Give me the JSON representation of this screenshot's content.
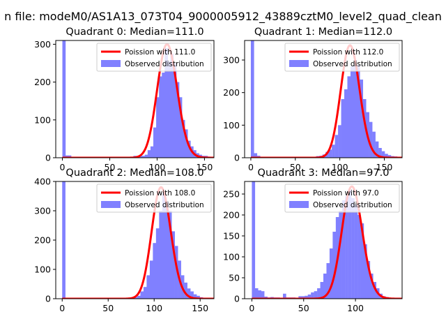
{
  "suptitle": "n file: modeM0/AS1A13_073T04_9000005912_43889cztM0_level2_quad_clean",
  "colors": {
    "observed": "#8080ff",
    "poisson": "#ff0000"
  },
  "chart_data": [
    {
      "type": "bar",
      "title": "Quadrant 0: Median=111.0",
      "xlim": [
        -7,
        160
      ],
      "ylim": [
        0,
        310
      ],
      "xticks": [
        0,
        50,
        100,
        150
      ],
      "yticks": [
        0,
        100,
        200,
        300
      ],
      "legend_position": "top-right",
      "observed_distribution": {
        "name": "Observed distribution",
        "bin_width": 3.3,
        "bins": [
          [
            0,
            310
          ],
          [
            3,
            6
          ],
          [
            6,
            6
          ],
          [
            72,
            2
          ],
          [
            75,
            5
          ],
          [
            78,
            3
          ],
          [
            81,
            5
          ],
          [
            84,
            5
          ],
          [
            87,
            8
          ],
          [
            90,
            20
          ],
          [
            93,
            30
          ],
          [
            96,
            80
          ],
          [
            99,
            160
          ],
          [
            102,
            215
          ],
          [
            105,
            225
          ],
          [
            108,
            290
          ],
          [
            111,
            255
          ],
          [
            114,
            275
          ],
          [
            117,
            250
          ],
          [
            120,
            200
          ],
          [
            123,
            160
          ],
          [
            126,
            100
          ],
          [
            129,
            75
          ],
          [
            132,
            45
          ],
          [
            135,
            30
          ],
          [
            138,
            20
          ],
          [
            141,
            12
          ],
          [
            144,
            8
          ],
          [
            147,
            5
          ],
          [
            150,
            5
          ],
          [
            153,
            3
          ]
        ]
      },
      "poisson": {
        "name": "Poission with 111.0",
        "lambda": 111.0,
        "scale": 300
      }
    },
    {
      "type": "bar",
      "title": "Quadrant 1: Median=112.0",
      "xlim": [
        -7,
        170
      ],
      "ylim": [
        0,
        360
      ],
      "xticks": [
        0,
        50,
        100,
        150
      ],
      "yticks": [
        0,
        100,
        200,
        300
      ],
      "legend_position": "top-right",
      "observed_distribution": {
        "name": "Observed distribution",
        "bin_width": 3.5,
        "bins": [
          [
            0,
            360
          ],
          [
            3.5,
            14
          ],
          [
            7,
            6
          ],
          [
            70,
            3
          ],
          [
            73.5,
            5
          ],
          [
            77,
            6
          ],
          [
            80.5,
            10
          ],
          [
            84,
            18
          ],
          [
            87.5,
            25
          ],
          [
            91,
            40
          ],
          [
            94.5,
            70
          ],
          [
            98,
            100
          ],
          [
            101.5,
            180
          ],
          [
            105,
            210
          ],
          [
            108.5,
            250
          ],
          [
            112,
            280
          ],
          [
            115.5,
            300
          ],
          [
            119,
            285
          ],
          [
            122.5,
            240
          ],
          [
            126,
            180
          ],
          [
            129.5,
            140
          ],
          [
            133,
            110
          ],
          [
            136.5,
            80
          ],
          [
            140,
            50
          ],
          [
            143.5,
            30
          ],
          [
            147,
            20
          ],
          [
            150.5,
            12
          ],
          [
            154,
            8
          ],
          [
            157.5,
            5
          ],
          [
            161,
            4
          ]
        ]
      },
      "poisson": {
        "name": "Poission with 112.0",
        "lambda": 112.0,
        "scale": 345
      }
    },
    {
      "type": "bar",
      "title": "Quadrant 2: Median=108.0",
      "xlim": [
        -7,
        165
      ],
      "ylim": [
        0,
        400
      ],
      "xticks": [
        0,
        50,
        100,
        150
      ],
      "yticks": [
        0,
        100,
        200,
        300,
        400
      ],
      "legend_position": "top-right",
      "observed_distribution": {
        "name": "Observed distribution",
        "bin_width": 3.4,
        "bins": [
          [
            0,
            400
          ],
          [
            74.8,
            2
          ],
          [
            78.2,
            5
          ],
          [
            81.6,
            10
          ],
          [
            85,
            25
          ],
          [
            88.4,
            40
          ],
          [
            91.8,
            80
          ],
          [
            95.2,
            130
          ],
          [
            98.6,
            190
          ],
          [
            102,
            240
          ],
          [
            105.4,
            300
          ],
          [
            108.8,
            360
          ],
          [
            112.2,
            330
          ],
          [
            115.6,
            300
          ],
          [
            119,
            230
          ],
          [
            122.4,
            180
          ],
          [
            125.8,
            130
          ],
          [
            129.2,
            80
          ],
          [
            132.6,
            55
          ],
          [
            136,
            35
          ],
          [
            139.4,
            25
          ],
          [
            142.8,
            15
          ],
          [
            146.2,
            10
          ],
          [
            149.6,
            5
          ],
          [
            153,
            3
          ]
        ]
      },
      "poisson": {
        "name": "Poission with 108.0",
        "lambda": 108.0,
        "scale": 380
      }
    },
    {
      "type": "bar",
      "title": "Quadrant 3: Median=97.0",
      "xlim": [
        -7,
        145
      ],
      "ylim": [
        0,
        280
      ],
      "xticks": [
        0,
        50,
        100
      ],
      "yticks": [
        0,
        50,
        100,
        150,
        200,
        250
      ],
      "legend_position": "top-right",
      "observed_distribution": {
        "name": "Observed distribution",
        "bin_width": 3,
        "bins": [
          [
            0,
            280
          ],
          [
            3,
            25
          ],
          [
            6,
            20
          ],
          [
            9,
            18
          ],
          [
            12,
            5
          ],
          [
            15,
            3
          ],
          [
            18,
            4
          ],
          [
            21,
            3
          ],
          [
            24,
            3
          ],
          [
            27,
            2
          ],
          [
            30,
            12
          ],
          [
            33,
            3
          ],
          [
            36,
            3
          ],
          [
            39,
            3
          ],
          [
            42,
            2
          ],
          [
            45,
            6
          ],
          [
            48,
            6
          ],
          [
            51,
            7
          ],
          [
            54,
            10
          ],
          [
            57,
            15
          ],
          [
            60,
            18
          ],
          [
            63,
            25
          ],
          [
            66,
            40
          ],
          [
            69,
            60
          ],
          [
            72,
            85
          ],
          [
            75,
            120
          ],
          [
            78,
            160
          ],
          [
            81,
            195
          ],
          [
            84,
            210
          ],
          [
            87,
            235
          ],
          [
            90,
            245
          ],
          [
            93,
            260
          ],
          [
            96,
            240
          ],
          [
            99,
            225
          ],
          [
            102,
            200
          ],
          [
            105,
            180
          ],
          [
            108,
            130
          ],
          [
            111,
            90
          ],
          [
            114,
            60
          ],
          [
            117,
            40
          ],
          [
            120,
            25
          ],
          [
            123,
            12
          ],
          [
            126,
            6
          ],
          [
            129,
            4
          ],
          [
            132,
            2
          ]
        ]
      },
      "poisson": {
        "name": "Poission with 97.0",
        "lambda": 97.0,
        "scale": 268
      }
    }
  ]
}
